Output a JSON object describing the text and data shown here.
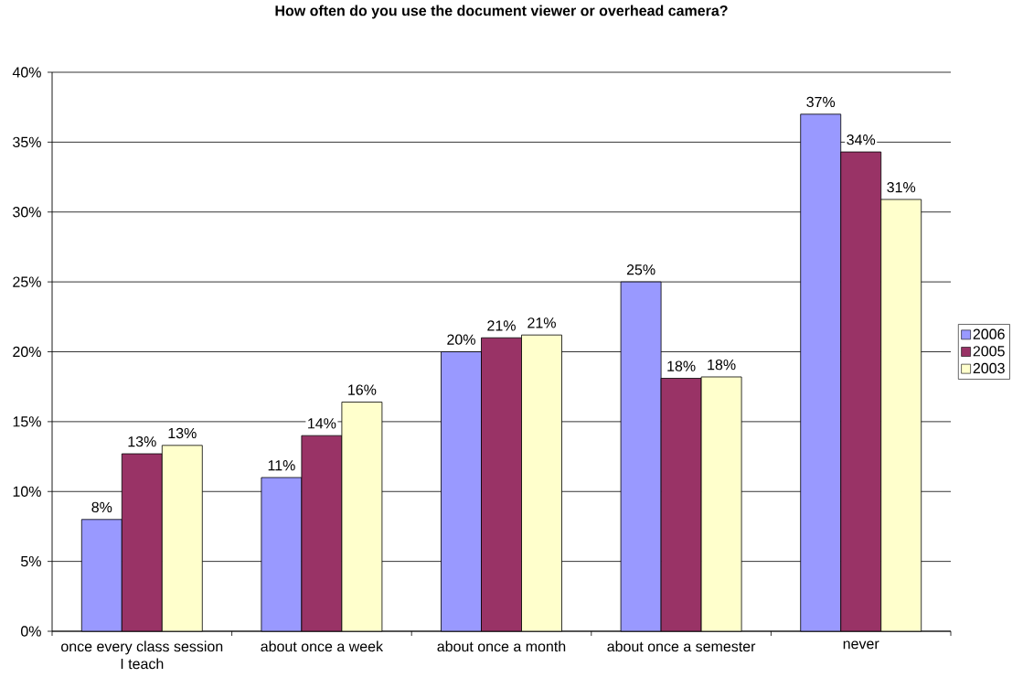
{
  "chart_data": {
    "type": "bar",
    "title": "How often do you use the document viewer or overhead camera?",
    "categories": [
      "once every class session I teach",
      "about once a week",
      "about once a month",
      "about once a semester",
      "never"
    ],
    "series": [
      {
        "name": "2006",
        "color": "#9999ff",
        "values": [
          8.0,
          11.0,
          20.0,
          25.0,
          37.0
        ],
        "value_labels": [
          "8%",
          "11%",
          "20%",
          "25%",
          "37%"
        ]
      },
      {
        "name": "2005",
        "color": "#993366",
        "values": [
          12.7,
          14.0,
          21.0,
          18.1,
          34.3
        ],
        "value_labels": [
          "13%",
          "14%",
          "21%",
          "18%",
          "34%"
        ]
      },
      {
        "name": "2003",
        "color": "#ffffcc",
        "values": [
          13.3,
          16.4,
          21.2,
          18.2,
          30.9
        ],
        "value_labels": [
          "13%",
          "16%",
          "21%",
          "18%",
          "31%"
        ]
      }
    ],
    "ylim": [
      0,
      40
    ],
    "yticks": [
      {
        "value": 0,
        "label": "0%"
      },
      {
        "value": 5,
        "label": "5%"
      },
      {
        "value": 10,
        "label": "10%"
      },
      {
        "value": 15,
        "label": "15%"
      },
      {
        "value": 20,
        "label": "20%"
      },
      {
        "value": 25,
        "label": "25%"
      },
      {
        "value": 30,
        "label": "30%"
      },
      {
        "value": 35,
        "label": "35%"
      },
      {
        "value": 40,
        "label": "40%"
      }
    ],
    "grid": "y",
    "legend": "right"
  }
}
